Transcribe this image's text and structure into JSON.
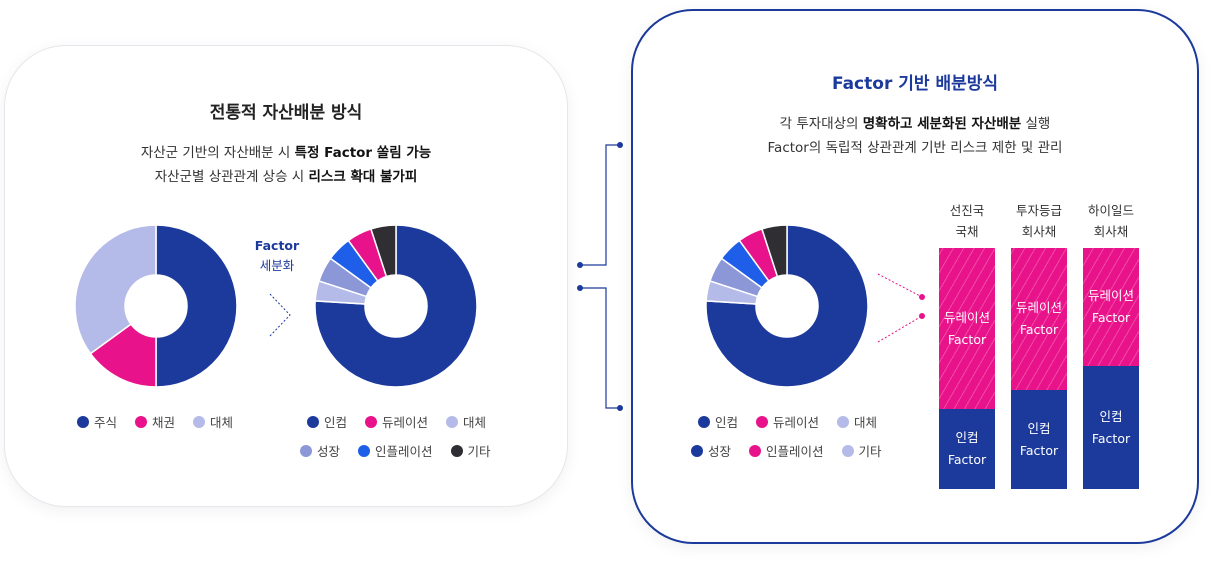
{
  "colors": {
    "navy": "#1c3a9c",
    "pink": "#e8138a",
    "lavender": "#b4bbe8",
    "periwinkle": "#8b97d6",
    "blue": "#1e5ee8",
    "dark": "#2e2e33"
  },
  "left_panel": {
    "title": "전통적 자산배분 방식",
    "desc1_pre": "자산군 기반의 자산배분 시 ",
    "desc1_bold": "특정 Factor 쏠림 가능",
    "desc2_pre": "자산군별 상관관계 상승 시 ",
    "desc2_bold": "리스크 확대 불가피",
    "factor_tag_main": "Factor",
    "factor_tag_sub": "세분화",
    "legend1": [
      {
        "label": "주식",
        "color": "#1c3a9c"
      },
      {
        "label": "채권",
        "color": "#e8138a"
      },
      {
        "label": "대체",
        "color": "#b4bbe8"
      }
    ],
    "legend2_row1": [
      {
        "label": "인컴",
        "color": "#1c3a9c"
      },
      {
        "label": "듀레이션",
        "color": "#e8138a"
      },
      {
        "label": "대체",
        "color": "#b4bbe8"
      }
    ],
    "legend2_row2": [
      {
        "label": "성장",
        "color": "#8b97d6"
      },
      {
        "label": "인플레이션",
        "color": "#1e5ee8"
      },
      {
        "label": "기타",
        "color": "#2e2e33"
      }
    ]
  },
  "right_panel": {
    "title": "Factor 기반 배분방식",
    "desc1_pre": "각 투자대상의 ",
    "desc1_bold": "명확하고 세분화된 자산배분",
    "desc1_post": " 실행",
    "desc2": "Factor의 독립적 상관관계 기반 리스크 제한 및 관리",
    "legend_row1": [
      {
        "label": "인컴",
        "color": "#1c3a9c"
      },
      {
        "label": "듀레이션",
        "color": "#e8138a"
      },
      {
        "label": "대체",
        "color": "#b4bbe8"
      }
    ],
    "legend_row2": [
      {
        "label": "성장",
        "color": "#1c3a9c"
      },
      {
        "label": "인플레이션",
        "color": "#e8138a"
      },
      {
        "label": "기타",
        "color": "#b4bbe8"
      }
    ],
    "bars": [
      {
        "head1": "선진국",
        "head2": "국채",
        "top_l1": "듀레이션",
        "top_l2": "Factor",
        "bot_l1": "인컴",
        "bot_l2": "Factor",
        "top_share": 0.67
      },
      {
        "head1": "투자등급",
        "head2": "회사채",
        "top_l1": "듀레이션",
        "top_l2": "Factor",
        "bot_l1": "인컴",
        "bot_l2": "Factor",
        "top_share": 0.59
      },
      {
        "head1": "하이일드",
        "head2": "회사채",
        "top_l1": "듀레이션",
        "top_l2": "Factor",
        "bot_l1": "인컴",
        "bot_l2": "Factor",
        "top_share": 0.49
      }
    ]
  },
  "chart_data": [
    {
      "type": "pie",
      "categories": [
        "주식",
        "채권",
        "대체"
      ],
      "values": [
        50,
        15,
        35
      ]
    },
    {
      "type": "pie",
      "categories": [
        "인컴",
        "대체",
        "성장",
        "인플레이션",
        "듀레이션",
        "기타"
      ],
      "values": [
        76,
        4,
        5,
        5,
        5,
        5
      ]
    },
    {
      "type": "pie",
      "categories": [
        "인컴",
        "대체",
        "성장",
        "인플레이션",
        "듀레이션",
        "기타"
      ],
      "values": [
        76,
        4,
        5,
        5,
        5,
        5
      ]
    }
  ]
}
